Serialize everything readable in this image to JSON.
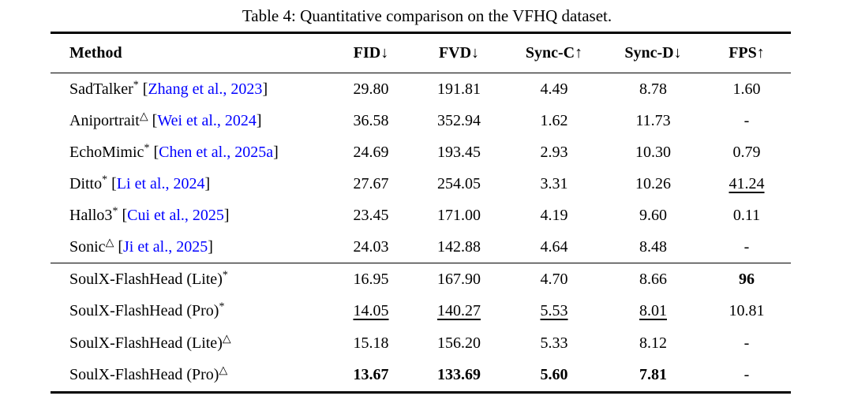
{
  "caption": "Table 4: Quantitative comparison on the VFHQ dataset.",
  "colors": {
    "citation_link": "#0000ff",
    "text": "#000000",
    "rule": "#000000"
  },
  "table": {
    "columns": [
      {
        "key": "method",
        "label": "Method",
        "align": "left"
      },
      {
        "key": "fid",
        "label": "FID↓",
        "align": "center"
      },
      {
        "key": "fvd",
        "label": "FVD↓",
        "align": "center"
      },
      {
        "key": "sync-c",
        "label": "Sync-C↑",
        "align": "center"
      },
      {
        "key": "sync-d",
        "label": "Sync-D↓",
        "align": "center"
      },
      {
        "key": "fps",
        "label": "FPS↑",
        "align": "center"
      }
    ],
    "groups": [
      {
        "name": "baselines",
        "rows": [
          {
            "method": "SadTalker",
            "marker": "*",
            "citation": "Zhang et al., 2023",
            "cells": [
              {
                "text": "29.80"
              },
              {
                "text": "191.81"
              },
              {
                "text": "4.49"
              },
              {
                "text": "8.78"
              },
              {
                "text": "1.60"
              }
            ]
          },
          {
            "method": "Aniportrait",
            "marker": "△",
            "citation": "Wei et al., 2024",
            "cells": [
              {
                "text": "36.58"
              },
              {
                "text": "352.94"
              },
              {
                "text": "1.62"
              },
              {
                "text": "11.73"
              },
              {
                "text": "-"
              }
            ]
          },
          {
            "method": "EchoMimic",
            "marker": "*",
            "citation": "Chen et al., 2025a",
            "cells": [
              {
                "text": "24.69"
              },
              {
                "text": "193.45"
              },
              {
                "text": "2.93"
              },
              {
                "text": "10.30"
              },
              {
                "text": "0.79"
              }
            ]
          },
          {
            "method": "Ditto",
            "marker": "*",
            "citation": "Li et al., 2024",
            "cells": [
              {
                "text": "27.67"
              },
              {
                "text": "254.05"
              },
              {
                "text": "3.31"
              },
              {
                "text": "10.26"
              },
              {
                "text": "41.24",
                "underline": true
              }
            ]
          },
          {
            "method": "Hallo3",
            "marker": "*",
            "citation": "Cui et al., 2025",
            "cells": [
              {
                "text": "23.45"
              },
              {
                "text": "171.00"
              },
              {
                "text": "4.19"
              },
              {
                "text": "9.60"
              },
              {
                "text": "0.11"
              }
            ]
          },
          {
            "method": "Sonic",
            "marker": "△",
            "citation": "Ji et al., 2025",
            "cells": [
              {
                "text": "24.03"
              },
              {
                "text": "142.88"
              },
              {
                "text": "4.64"
              },
              {
                "text": "8.48"
              },
              {
                "text": "-"
              }
            ]
          }
        ]
      },
      {
        "name": "ours",
        "rows": [
          {
            "method": "SoulX-FlashHead (Lite)",
            "marker": "*",
            "citation": null,
            "cells": [
              {
                "text": "16.95"
              },
              {
                "text": "167.90"
              },
              {
                "text": "4.70"
              },
              {
                "text": "8.66"
              },
              {
                "text": "96",
                "bold": true
              }
            ]
          },
          {
            "method": "SoulX-FlashHead (Pro)",
            "marker": "*",
            "citation": null,
            "cells": [
              {
                "text": "14.05",
                "underline": true
              },
              {
                "text": "140.27",
                "underline": true
              },
              {
                "text": "5.53",
                "underline": true
              },
              {
                "text": "8.01",
                "underline": true
              },
              {
                "text": "10.81"
              }
            ]
          },
          {
            "method": "SoulX-FlashHead (Lite)",
            "marker": "△",
            "citation": null,
            "cells": [
              {
                "text": "15.18"
              },
              {
                "text": "156.20"
              },
              {
                "text": "5.33"
              },
              {
                "text": "8.12"
              },
              {
                "text": "-"
              }
            ]
          },
          {
            "method": "SoulX-FlashHead (Pro)",
            "marker": "△",
            "citation": null,
            "cells": [
              {
                "text": "13.67",
                "bold": true
              },
              {
                "text": "133.69",
                "bold": true
              },
              {
                "text": "5.60",
                "bold": true
              },
              {
                "text": "7.81",
                "bold": true
              },
              {
                "text": "-"
              }
            ]
          }
        ]
      }
    ]
  }
}
